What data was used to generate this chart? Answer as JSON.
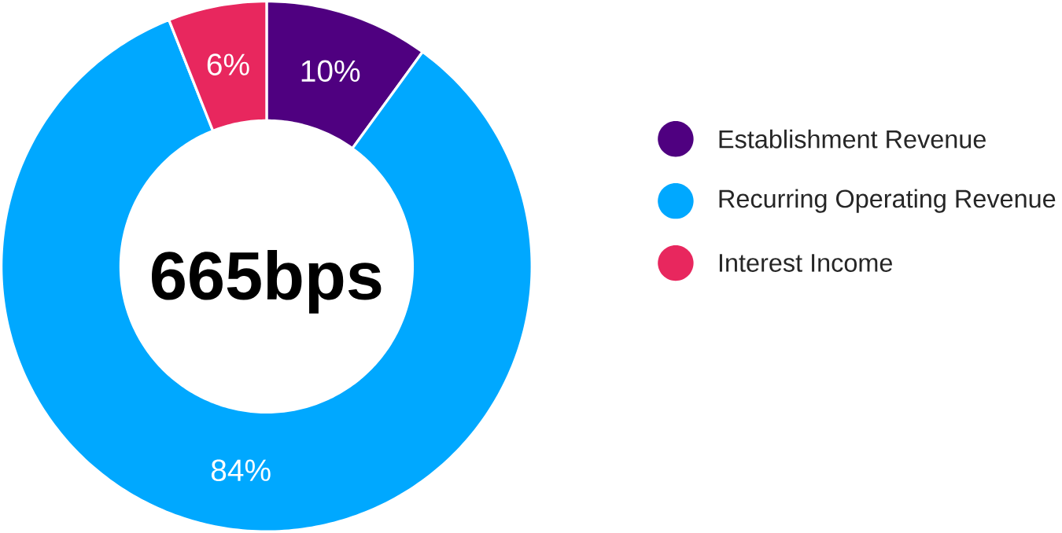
{
  "chart_data": {
    "type": "donut",
    "categories": [
      "Establishment Revenue",
      "Recurring Operating Revenue",
      "Interest Income"
    ],
    "values": [
      10,
      84,
      6
    ],
    "value_labels": [
      "10%",
      "84%",
      "6%"
    ],
    "colors": [
      "#4f0080",
      "#00a8ff",
      "#e8275e"
    ],
    "annotations": [
      "665bps"
    ],
    "legend": "right"
  }
}
